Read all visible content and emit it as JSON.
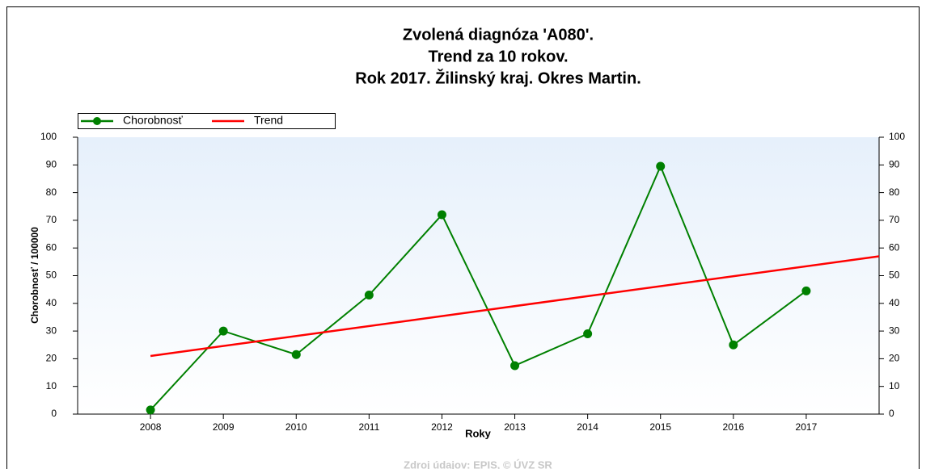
{
  "chart_data": {
    "type": "line",
    "title": [
      "Zvolená diagnóza 'A080'.",
      "Trend za 10 rokov.",
      "Rok 2017. Žilinský kraj. Okres Martin."
    ],
    "xlabel": "Roky",
    "ylabel": "Chorobnosť / 100000",
    "xlim": [
      2007,
      2018
    ],
    "xticks": [
      2008,
      2009,
      2010,
      2011,
      2012,
      2013,
      2014,
      2015,
      2016,
      2017
    ],
    "ylim": [
      0,
      100
    ],
    "yticks": [
      0,
      10,
      20,
      30,
      40,
      50,
      60,
      70,
      80,
      90,
      100
    ],
    "y2lim": [
      0,
      100
    ],
    "y2ticks": [
      0,
      10,
      20,
      30,
      40,
      50,
      60,
      70,
      80,
      90,
      100
    ],
    "series": [
      {
        "name": "Chorobnosť",
        "color": "#008000",
        "markers": true,
        "x": [
          2008,
          2009,
          2010,
          2011,
          2012,
          2013,
          2014,
          2015,
          2016,
          2017
        ],
        "values": [
          1.5,
          30,
          21.5,
          43,
          72,
          17.5,
          29,
          89.5,
          25,
          44.5
        ]
      },
      {
        "name": "Trend",
        "color": "#ff0000",
        "markers": false,
        "x": [
          2008,
          2018
        ],
        "values": [
          21,
          57
        ]
      }
    ],
    "source": "Zdroj údajov: EPIS, © ÚVZ SR"
  }
}
